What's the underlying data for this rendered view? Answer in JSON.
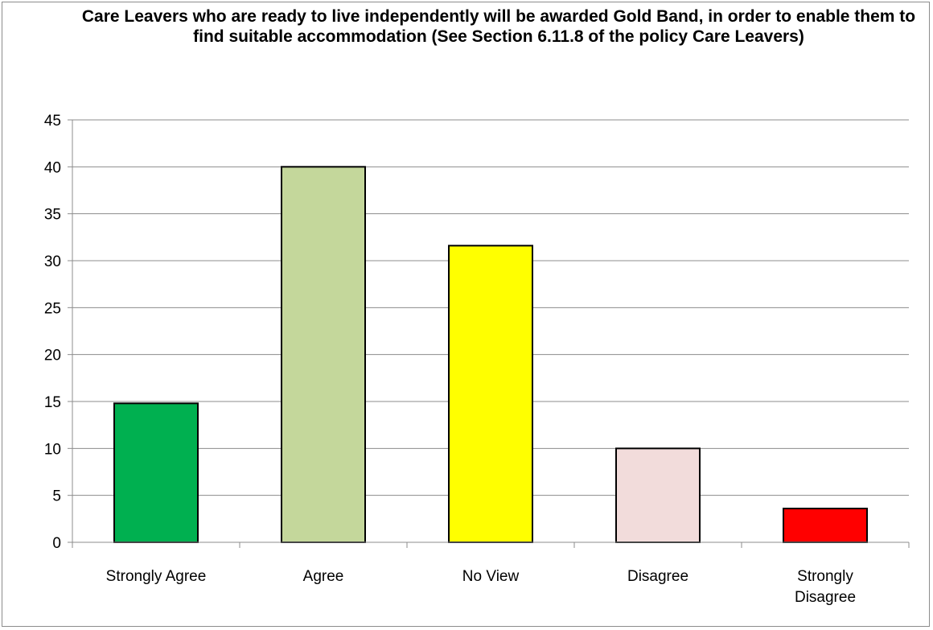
{
  "chart_data": {
    "type": "bar",
    "title": "Care Leavers who are ready to live independently will be awarded Gold Band, in order to enable them to find suitable accommodation (See Section 6.11.8 of the policy Care Leavers)",
    "categories": [
      "Strongly Agree",
      "Agree",
      "No View",
      "Disagree",
      "Strongly Disagree"
    ],
    "category_lines": [
      [
        "Strongly Agree"
      ],
      [
        "Agree"
      ],
      [
        "No View"
      ],
      [
        "Disagree"
      ],
      [
        "Strongly",
        "Disagree"
      ]
    ],
    "values": [
      14.8,
      40,
      31.6,
      10,
      3.6
    ],
    "colors": [
      "#00b050",
      "#c4d79b",
      "#ffff00",
      "#f2dcdb",
      "#ff0000"
    ],
    "ylim": [
      0,
      45
    ],
    "yticks": [
      0,
      5,
      10,
      15,
      20,
      25,
      30,
      35,
      40,
      45
    ],
    "grid": true,
    "legend": "none",
    "xlabel": "",
    "ylabel": ""
  }
}
